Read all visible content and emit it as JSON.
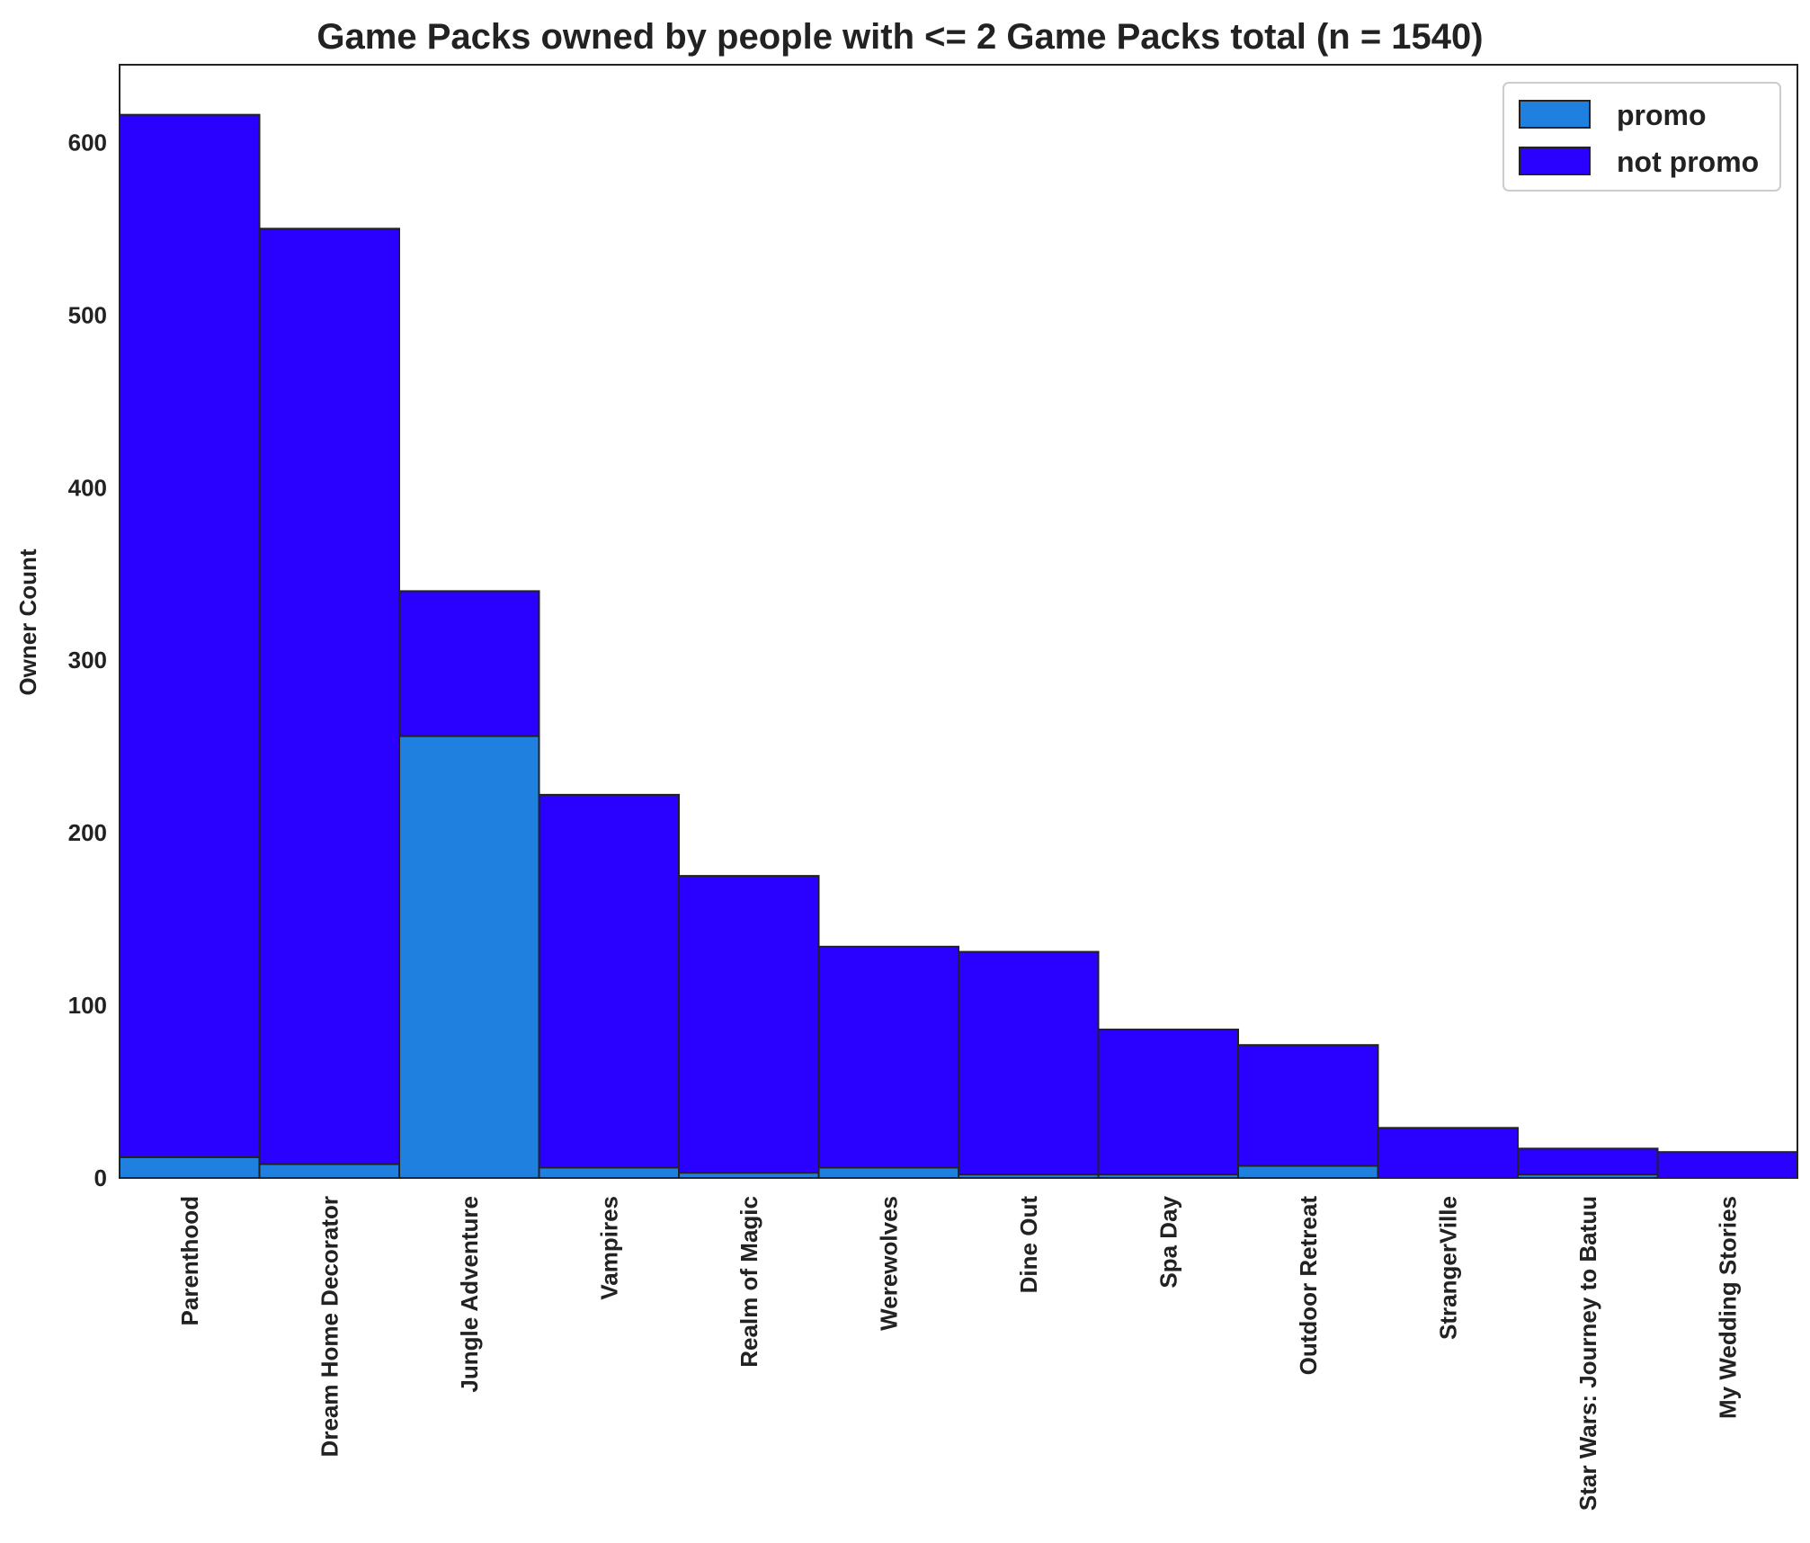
{
  "chart_data": {
    "type": "bar",
    "stacked": false,
    "title": "Game Packs owned by people with <= 2 Game Packs total (n = 1540)",
    "xlabel": "",
    "ylabel": "Owner Count",
    "ylim": [
      0,
      645
    ],
    "yticks": [
      0,
      100,
      200,
      300,
      400,
      500,
      600
    ],
    "grid": false,
    "legend_position": "top-right",
    "categories": [
      "Parenthood",
      "Dream Home Decorator",
      "Jungle Adventure",
      "Vampires",
      "Realm of Magic",
      "Werewolves",
      "Dine Out",
      "Spa Day",
      "Outdoor Retreat",
      "StrangerVille",
      "Star Wars: Journey to Batuu",
      "My Wedding Stories"
    ],
    "series": [
      {
        "name": "not promo",
        "color": "#2a00ff",
        "values": [
          616,
          550,
          340,
          222,
          175,
          134,
          131,
          86,
          77,
          29,
          17,
          15
        ]
      },
      {
        "name": "promo",
        "color": "#2080df",
        "values": [
          12,
          8,
          256,
          6,
          3,
          6,
          2,
          2,
          7,
          0,
          2,
          0
        ]
      }
    ],
    "edge_color": "#222222"
  }
}
